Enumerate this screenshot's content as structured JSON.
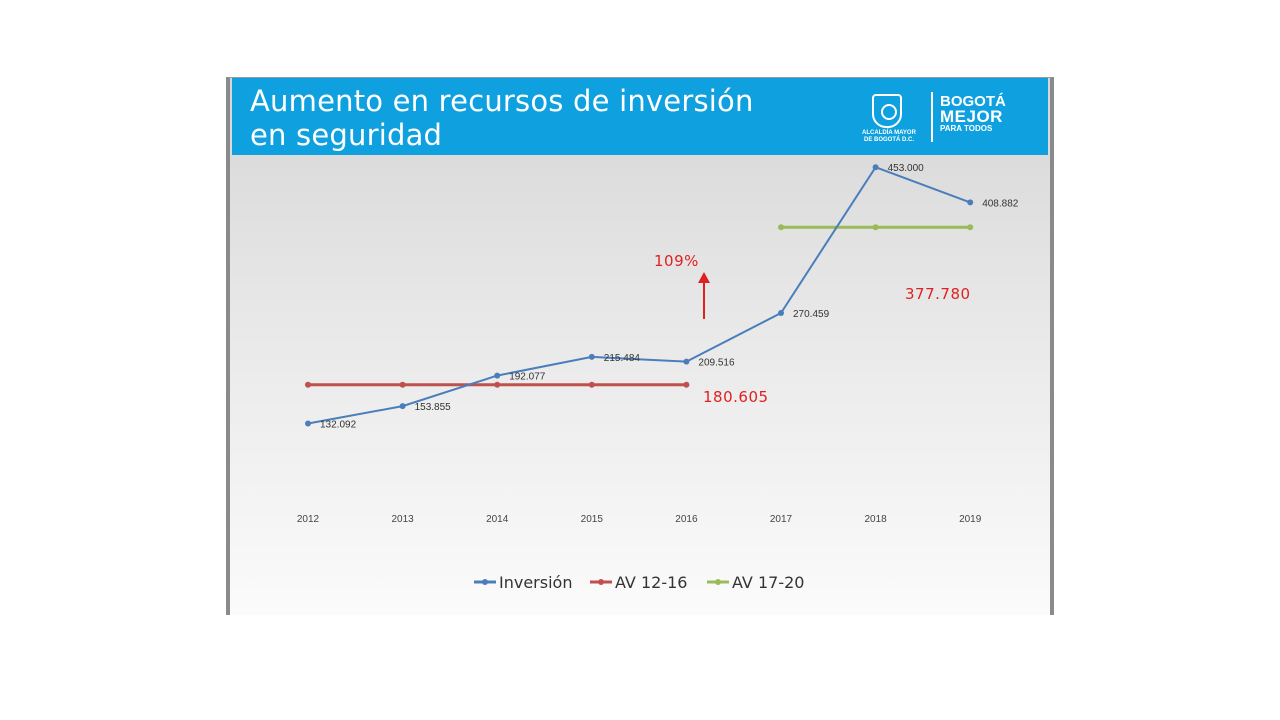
{
  "slide": {
    "title_line1": "Aumento en recursos de inversión",
    "title_line2": "en seguridad",
    "logo": {
      "caption_line1": "ALCALDÍA MAYOR",
      "caption_line2": "DE BOGOTÁ D.C.",
      "brand_line1": "BOGOTÁ",
      "brand_line2": "MEJOR",
      "brand_line3": "PARA TODOS"
    }
  },
  "colors": {
    "header": "#0fa0e0",
    "inversion": "#4a7ebb",
    "av1216": "#c0504d",
    "av1720": "#9bbb59",
    "annotation": "#e02020"
  },
  "chart_data": {
    "type": "line",
    "categories": [
      "2012",
      "2013",
      "2014",
      "2015",
      "2016",
      "2017",
      "2018",
      "2019"
    ],
    "ylim": [
      0,
      500000
    ],
    "grid": false,
    "legend_position": "bottom",
    "series": [
      {
        "name": "Inversión",
        "values": [
          132092,
          153855,
          192077,
          215484,
          209516,
          270459,
          453000,
          408882
        ],
        "labels": [
          "132.092",
          "153.855",
          "192.077",
          "215.484",
          "209.516",
          "270.459",
          "453.000",
          "408.882"
        ]
      },
      {
        "name": "AV 12-16",
        "values": [
          180605,
          180605,
          180605,
          180605,
          180605,
          null,
          null,
          null
        ]
      },
      {
        "name": "AV 17-20",
        "values": [
          null,
          null,
          null,
          null,
          null,
          377780,
          377780,
          377780
        ]
      }
    ],
    "annotations": {
      "av1216_value": "180.605",
      "av1720_value": "377.780",
      "growth": "109%"
    }
  }
}
